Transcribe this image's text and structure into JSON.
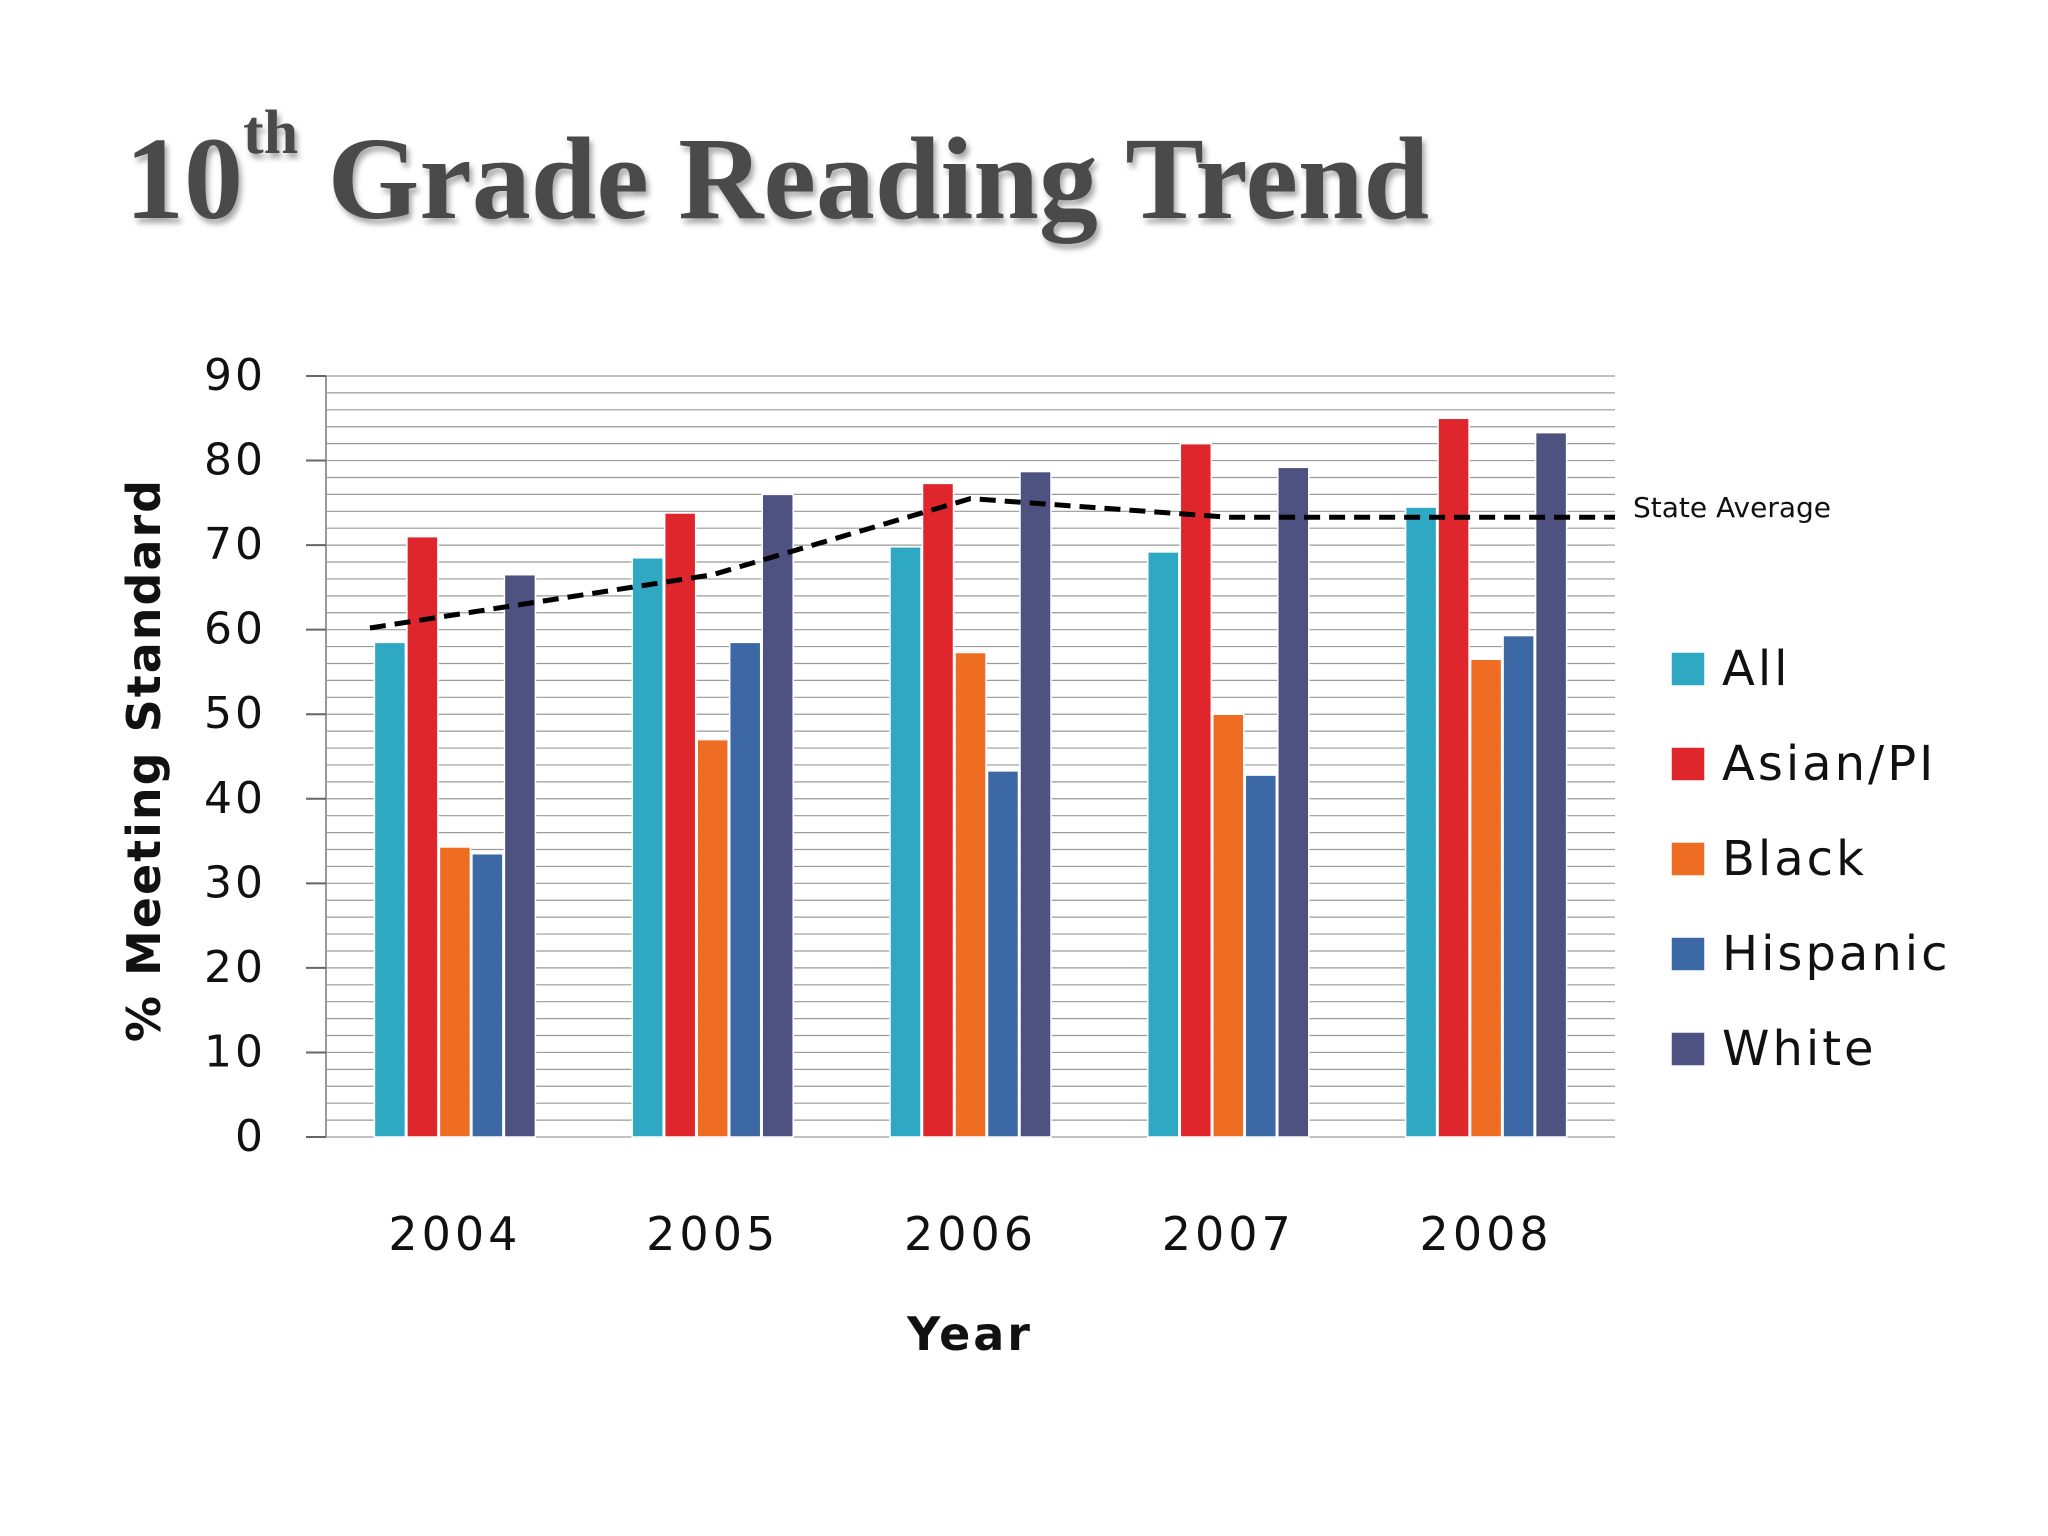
{
  "title": {
    "main": "10",
    "superscript": "th",
    "rest": " Grade Reading Trend"
  },
  "chart_data": {
    "type": "bar",
    "title": "10th Grade Reading Trend",
    "xlabel": "Year",
    "ylabel": "% Meeting Standard",
    "ylim": [
      0,
      90
    ],
    "yticks": [
      0,
      10,
      20,
      30,
      40,
      50,
      60,
      70,
      80,
      90
    ],
    "grid": true,
    "legend_position": "right",
    "categories": [
      "2004",
      "2005",
      "2006",
      "2007",
      "2008"
    ],
    "series": [
      {
        "name": "All",
        "color": "#2fa8c3",
        "values": [
          58.5,
          68.5,
          69.8,
          69.2,
          74.5
        ]
      },
      {
        "name": "Asian/PI",
        "color": "#e0262d",
        "values": [
          71,
          73.8,
          77.3,
          82,
          85
        ]
      },
      {
        "name": "Black",
        "color": "#ef6d23",
        "values": [
          34.3,
          47,
          57.3,
          50,
          56.5
        ]
      },
      {
        "name": "Hispanic",
        "color": "#3d68a6",
        "values": [
          33.5,
          58.5,
          43.3,
          42.8,
          59.3
        ]
      },
      {
        "name": "White",
        "color": "#4e5280",
        "values": [
          66.5,
          76,
          78.7,
          79.2,
          83.3
        ]
      }
    ],
    "state_average": {
      "label": "State Average",
      "values": [
        60.2,
        66.5,
        75.5,
        73.3,
        73.3
      ]
    }
  }
}
